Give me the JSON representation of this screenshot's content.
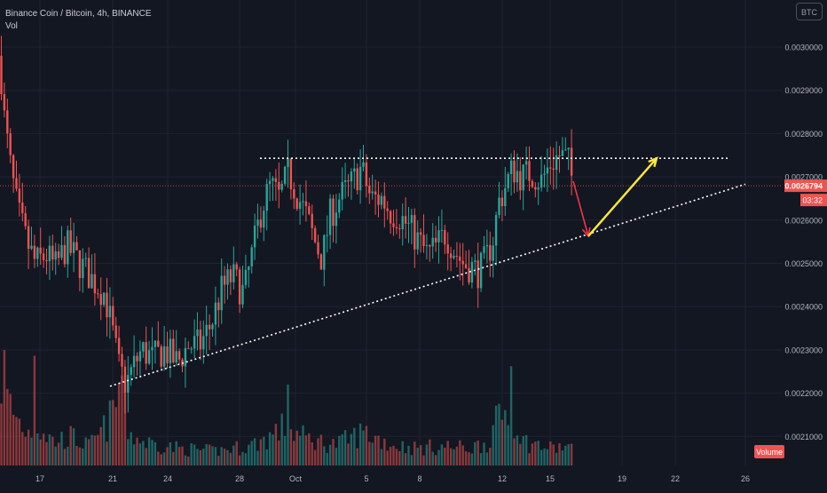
{
  "header": {
    "symbol_line": "Binance Coin / Bitcoin, 4h, BINANCE",
    "volume_label": "Vol",
    "currency_badge": "BTC"
  },
  "price_label": {
    "value": "0.0026794",
    "countdown": "03:32"
  },
  "volume_badge": "Volume",
  "colors": {
    "background": "#131722",
    "up": "#26a69a",
    "down": "#ef5350",
    "grid": "#1f2330",
    "axis_text": "#b2b5be",
    "price_line": "#ef5350",
    "arrow_up": "#ffeb3b",
    "arrow_down": "#f23645",
    "trendline": "#ffffff"
  },
  "chart_data": {
    "type": "candlestick",
    "x_ticks": [
      "17",
      "21",
      "24",
      "28",
      "Oct",
      "5",
      "8",
      "12",
      "15",
      "19",
      "22",
      "26"
    ],
    "y_ticks": [
      "0.0030000",
      "0.0029000",
      "0.0028000",
      "0.0027000",
      "0.0026000",
      "0.0025000",
      "0.0024000",
      "0.0023000",
      "0.0022000",
      "0.0021000"
    ],
    "ylim": [
      0.00205,
      0.0031
    ],
    "close_path": [
      [
        0,
        0.00298
      ],
      [
        4,
        0.00285
      ],
      [
        12,
        0.00272
      ],
      [
        20,
        0.00262
      ],
      [
        30,
        0.00255
      ],
      [
        40,
        0.0025
      ],
      [
        52,
        0.00252
      ],
      [
        62,
        0.00249
      ],
      [
        75,
        0.00254
      ],
      [
        90,
        0.0025
      ],
      [
        105,
        0.00246
      ],
      [
        118,
        0.00243
      ],
      [
        126,
        0.00235
      ],
      [
        134,
        0.00226
      ],
      [
        142,
        0.00222
      ],
      [
        150,
        0.00226
      ],
      [
        160,
        0.0023
      ],
      [
        172,
        0.00228
      ],
      [
        185,
        0.0023
      ],
      [
        200,
        0.00227
      ],
      [
        212,
        0.00231
      ],
      [
        225,
        0.00231
      ],
      [
        238,
        0.00236
      ],
      [
        250,
        0.00244
      ],
      [
        262,
        0.00247
      ],
      [
        275,
        0.00243
      ],
      [
        285,
        0.00253
      ],
      [
        295,
        0.00263
      ],
      [
        305,
        0.00268
      ],
      [
        315,
        0.00265
      ],
      [
        325,
        0.00271
      ],
      [
        335,
        0.00266
      ],
      [
        345,
        0.00261
      ],
      [
        355,
        0.00255
      ],
      [
        363,
        0.00251
      ],
      [
        372,
        0.00261
      ],
      [
        382,
        0.00265
      ],
      [
        395,
        0.00268
      ],
      [
        407,
        0.00272
      ],
      [
        418,
        0.00265
      ],
      [
        430,
        0.00265
      ],
      [
        440,
        0.00262
      ],
      [
        450,
        0.00261
      ],
      [
        462,
        0.00258
      ],
      [
        472,
        0.00255
      ],
      [
        482,
        0.00252
      ],
      [
        492,
        0.00254
      ],
      [
        502,
        0.00257
      ],
      [
        512,
        0.00253
      ],
      [
        522,
        0.0025
      ],
      [
        532,
        0.00249
      ],
      [
        540,
        0.00248
      ],
      [
        548,
        0.00251
      ],
      [
        556,
        0.00256
      ],
      [
        562,
        0.00264
      ],
      [
        570,
        0.00268
      ],
      [
        578,
        0.00272
      ],
      [
        588,
        0.0027
      ],
      [
        598,
        0.00271
      ],
      [
        610,
        0.00269
      ],
      [
        620,
        0.00273
      ],
      [
        630,
        0.00275
      ],
      [
        640,
        0.00274
      ],
      [
        646,
        0.00268
      ]
    ],
    "volume_path": [
      [
        0,
        0.92
      ],
      [
        15,
        0.55
      ],
      [
        30,
        0.35
      ],
      [
        45,
        0.4
      ],
      [
        60,
        0.25
      ],
      [
        80,
        0.3
      ],
      [
        100,
        0.2
      ],
      [
        115,
        0.35
      ],
      [
        125,
        0.5
      ],
      [
        135,
        0.8
      ],
      [
        145,
        0.35
      ],
      [
        160,
        0.25
      ],
      [
        200,
        0.18
      ],
      [
        240,
        0.15
      ],
      [
        280,
        0.2
      ],
      [
        300,
        0.28
      ],
      [
        320,
        0.4
      ],
      [
        340,
        0.3
      ],
      [
        360,
        0.25
      ],
      [
        380,
        0.22
      ],
      [
        410,
        0.35
      ],
      [
        440,
        0.22
      ],
      [
        470,
        0.18
      ],
      [
        500,
        0.2
      ],
      [
        530,
        0.18
      ],
      [
        550,
        0.25
      ],
      [
        560,
        0.45
      ],
      [
        575,
        0.62
      ],
      [
        590,
        0.25
      ],
      [
        620,
        0.18
      ],
      [
        640,
        0.2
      ],
      [
        646,
        0.15
      ]
    ],
    "volume_peaks": [
      [
        6,
        1.0
      ],
      [
        38,
        0.95
      ],
      [
        137,
        0.78
      ],
      [
        325,
        0.7
      ],
      [
        577,
        0.86
      ]
    ],
    "annotations": {
      "resistance": {
        "x1": 293,
        "x2": 820,
        "y": 0.002743
      },
      "support": {
        "x1": 124,
        "y1": 0.002216,
        "x2": 840,
        "y2": 0.002683
      },
      "arrow_down": {
        "x1": 646,
        "y1": 0.00269,
        "x2": 663,
        "y2": 0.002563
      },
      "arrow_up": {
        "x1": 663,
        "y1": 0.002563,
        "x2": 740,
        "y2": 0.002743
      },
      "current_price": 0.0026794
    }
  }
}
